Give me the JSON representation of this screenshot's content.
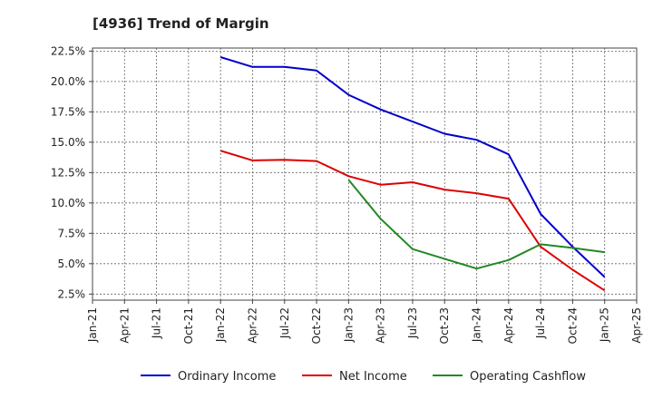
{
  "chart_data": {
    "type": "line",
    "title": "[4936]  Trend of Margin",
    "x": [
      "Jan-21",
      "Apr-21",
      "Jul-21",
      "Oct-21",
      "Jan-22",
      "Apr-22",
      "Jul-22",
      "Oct-22",
      "Jan-23",
      "Apr-23",
      "Jul-23",
      "Oct-23",
      "Jan-24",
      "Apr-24",
      "Jul-24",
      "Oct-24",
      "Jan-25",
      "Apr-25"
    ],
    "ylim": [
      2.0,
      22.75
    ],
    "yticks": [
      2.5,
      5.0,
      7.5,
      10.0,
      12.5,
      15.0,
      17.5,
      20.0,
      22.5
    ],
    "ytick_labels": [
      "2.5%",
      "5.0%",
      "7.5%",
      "10.0%",
      "12.5%",
      "15.0%",
      "17.5%",
      "20.0%",
      "22.5%"
    ],
    "grid": true,
    "legend_position": "bottom",
    "series": [
      {
        "name": "Ordinary Income",
        "color": "#0000cc",
        "values": [
          null,
          null,
          null,
          null,
          22.0,
          21.2,
          21.2,
          20.9,
          18.9,
          17.7,
          16.7,
          15.7,
          15.2,
          14.0,
          9.1,
          6.4,
          3.9,
          null
        ]
      },
      {
        "name": "Net Income",
        "color": "#dd0000",
        "values": [
          null,
          null,
          null,
          null,
          14.3,
          13.5,
          13.55,
          13.45,
          12.2,
          11.5,
          11.7,
          11.1,
          10.8,
          10.35,
          6.4,
          4.5,
          2.8,
          null
        ]
      },
      {
        "name": "Operating Cashflow",
        "color": "#228822",
        "values": [
          null,
          null,
          null,
          null,
          null,
          null,
          null,
          null,
          11.9,
          8.7,
          6.2,
          5.4,
          4.6,
          5.3,
          6.6,
          6.3,
          5.95,
          null
        ]
      }
    ]
  }
}
